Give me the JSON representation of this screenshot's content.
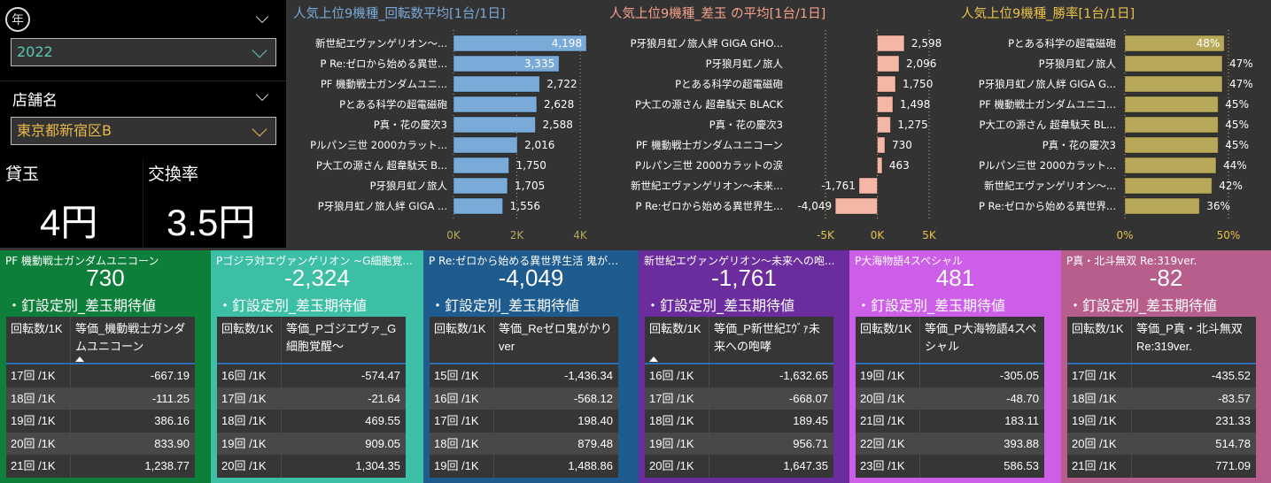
{
  "filters": {
    "back_icon_char": "年",
    "year_value": "2022",
    "store_label": "店舗名",
    "store_value": "東京都新宿区B"
  },
  "kpis": {
    "lend_label": "貸玉",
    "lend_value": "4円",
    "exchange_label": "交換率",
    "exchange_value": "3.5円"
  },
  "colors": {
    "spin_bar": "#7aaad8",
    "diff_bar": "#f4b6a5",
    "win_bar": "#b8a95a",
    "spin_title": "#7aaad8",
    "diff_title": "#f4a08a",
    "win_title": "#e8c24a",
    "panel1": "#0e7f3a",
    "panel2": "#3cbfa5",
    "panel3": "#1e5b8f",
    "panel4": "#6b2c9e",
    "panel5": "#cc5ee8",
    "panel6": "#b85e8c"
  },
  "chart_data": [
    {
      "type": "bar",
      "title": "人気上位9機種_回転数平均[1台/1日]",
      "categories": [
        "新世紀エヴァンゲリオン～...",
        "P Re:ゼロから始める異世...",
        "PF 機動戦士ガンダムユニ...",
        "Pとある科学の超電磁砲",
        "P真・花の慶次3",
        "Pルパン三世 2000カラット...",
        "P大工の源さん 超韋駄天 B...",
        "P牙狼月虹ノ旅人",
        "P牙狼月虹ノ旅人絆 GIGA ..."
      ],
      "values": [
        4198,
        3335,
        2722,
        2628,
        2588,
        2016,
        1750,
        1705,
        1556
      ],
      "value_labels": [
        "4,198",
        "3,335",
        "2,722",
        "2,628",
        "2,588",
        "2,016",
        "1,750",
        "1,705",
        "1,556"
      ],
      "xlim": [
        0,
        4000
      ],
      "ticks": [
        0,
        2000,
        4000
      ],
      "tick_labels": [
        "0K",
        "2K",
        "4K"
      ]
    },
    {
      "type": "bar",
      "title": "人気上位9機種_差玉 の平均[1台/1日]",
      "categories": [
        "P牙狼月虹ノ旅人絆 GIGA GHO...",
        "P牙狼月虹ノ旅人",
        "Pとある科学の超電磁砲",
        "P大工の源さん 超韋駄天 BLACK",
        "P真・花の慶次3",
        "PF 機動戦士ガンダムユニコーン",
        "Pルパン三世 2000カラットの涙",
        "新世紀エヴァンゲリオン～未来...",
        "P Re:ゼロから始める異世界生..."
      ],
      "values": [
        2598,
        2096,
        1750,
        1498,
        1275,
        730,
        463,
        -1761,
        -4049
      ],
      "value_labels": [
        "2,598",
        "2,096",
        "1,750",
        "1,498",
        "1,275",
        "730",
        "463",
        "-1,761",
        "-4,049"
      ],
      "xlim": [
        -5000,
        5000
      ],
      "ticks": [
        -5000,
        0,
        5000
      ],
      "tick_labels": [
        "-5K",
        "0K",
        "5K"
      ]
    },
    {
      "type": "bar",
      "title": "人気上位9機種_勝率[1台/1日]",
      "categories": [
        "Pとある科学の超電磁砲",
        "P牙狼月虹ノ旅人",
        "P牙狼月虹ノ旅人絆 GIGA G...",
        "PF 機動戦士ガンダムユニコ...",
        "P大工の源さん 超韋駄天 BL...",
        "P真・花の慶次3",
        "Pルパン三世 2000カラット...",
        "新世紀エヴァンゲリオン～...",
        "P Re:ゼロから始める異世界..."
      ],
      "values": [
        48,
        47,
        47,
        45,
        45,
        45,
        44,
        42,
        36
      ],
      "value_labels": [
        "48%",
        "47%",
        "47%",
        "45%",
        "45%",
        "45%",
        "44%",
        "42%",
        "36%"
      ],
      "xlim": [
        0,
        50
      ],
      "ticks": [
        0,
        50
      ],
      "tick_labels": [
        "0%",
        "50%"
      ]
    }
  ],
  "panels": [
    {
      "title": "PF 機動戦士ガンダムユニコーン",
      "value": "730",
      "subtitle": "・釘設定別_差玉期待値",
      "col1": "回転数/1K",
      "col2": "等価_機動戦士ガンダムユニコーン",
      "rows": [
        [
          "17回 /1K",
          "-667.19"
        ],
        [
          "18回 /1K",
          "-111.25"
        ],
        [
          "19回 /1K",
          "386.16"
        ],
        [
          "20回 /1K",
          "833.90"
        ],
        [
          "21回 /1K",
          "1,238.77"
        ]
      ]
    },
    {
      "title": "Pゴジラ対エヴァンゲリオン ~G細胞覚...",
      "value": "-2,324",
      "subtitle": "・釘設定別_差玉期待値",
      "col1": "回転数/1K",
      "col2": "等価_Pゴジエヴァ_G細胞覚醒～",
      "rows": [
        [
          "16回 /1K",
          "-574.47"
        ],
        [
          "17回 /1K",
          "-21.64"
        ],
        [
          "18回 /1K",
          "469.55"
        ],
        [
          "19回 /1K",
          "909.05"
        ],
        [
          "20回 /1K",
          "1,304.35"
        ]
      ]
    },
    {
      "title": "P Re:ゼロから始める異世界生活 鬼がか...",
      "value": "-4,049",
      "subtitle": "・釘設定別_差玉期待値",
      "col1": "回転数/1K",
      "col2": "等価_Reゼロ鬼がかりver",
      "rows": [
        [
          "15回 /1K",
          "-1,436.34"
        ],
        [
          "16回 /1K",
          "-568.12"
        ],
        [
          "17回 /1K",
          "198.40"
        ],
        [
          "18回 /1K",
          "879.48"
        ],
        [
          "19回 /1K",
          "1,488.86"
        ]
      ]
    },
    {
      "title": "新世紀エヴァンゲリオン～未来への咆...",
      "value": "-1,761",
      "subtitle": "・釘設定別_差玉期待値",
      "col1": "回転数/1K",
      "col2": "等価_P新世紀ｴｳﾞｧ未来への咆哮",
      "rows": [
        [
          "16回 /1K",
          "-1,632.65"
        ],
        [
          "17回 /1K",
          "-668.07"
        ],
        [
          "18回 /1K",
          "189.45"
        ],
        [
          "19回 /1K",
          "956.71"
        ],
        [
          "20回 /1K",
          "1,647.35"
        ]
      ]
    },
    {
      "title": "P大海物語4スペシャル",
      "value": "481",
      "subtitle": "・釘設定別_差玉期待値",
      "col1": "回転数/1K",
      "col2": "等価_P大海物語4スペシャル",
      "rows": [
        [
          "19回 /1K",
          "-305.05"
        ],
        [
          "20回 /1K",
          "-48.70"
        ],
        [
          "21回 /1K",
          "183.11"
        ],
        [
          "22回 /1K",
          "393.88"
        ],
        [
          "23回 /1K",
          "586.53"
        ]
      ]
    },
    {
      "title": "P真・北斗無双 Re:319ver.",
      "value": "-82",
      "subtitle": "・釘設定別_差玉期待値",
      "col1": "回転数/1K",
      "col2": "等価_P真・北斗無双 Re:319ver.",
      "rows": [
        [
          "17回 /1K",
          "-435.52"
        ],
        [
          "18回 /1K",
          "-83.57"
        ],
        [
          "19回 /1K",
          "231.33"
        ],
        [
          "20回 /1K",
          "514.78"
        ],
        [
          "21回 /1K",
          "771.09"
        ]
      ]
    }
  ]
}
